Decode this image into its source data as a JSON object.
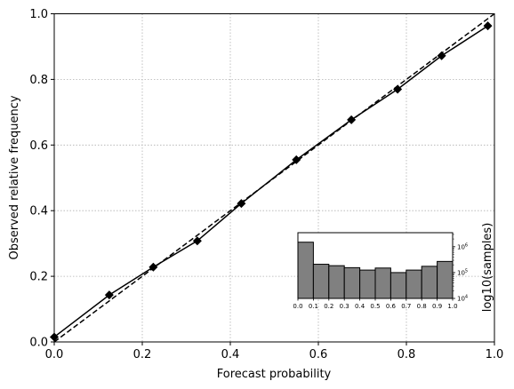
{
  "chart_data": [
    {
      "type": "line",
      "xlabel": "Forecast probability",
      "ylabel": "Observed relative frequency",
      "xlim": [
        0,
        1
      ],
      "ylim": [
        0,
        1
      ],
      "grid": true,
      "x_ticks": [
        "0.0",
        "0.2",
        "0.4",
        "0.6",
        "0.8",
        "1.0"
      ],
      "y_ticks": [
        "0.0",
        "0.2",
        "0.4",
        "0.6",
        "0.8",
        "1.0"
      ],
      "series": [
        {
          "x": [
            0.0,
            0.125,
            0.225,
            0.325,
            0.425,
            0.55,
            0.675,
            0.78,
            0.88,
            0.985
          ],
          "y": [
            0.015,
            0.143,
            0.228,
            0.308,
            0.422,
            0.555,
            0.677,
            0.77,
            0.872,
            0.963
          ],
          "marker": "diamond",
          "style": "solid",
          "color": "#000000"
        },
        {
          "x": [
            0,
            1
          ],
          "y": [
            0,
            1
          ],
          "style": "dashed",
          "color": "#000000"
        }
      ]
    },
    {
      "type": "bar",
      "inset": true,
      "ylabel": "log10(samples)",
      "y_scale": "log",
      "x_ticks": [
        "0.0",
        "0.1",
        "0.2",
        "0.3",
        "0.4",
        "0.5",
        "0.6",
        "0.7",
        "0.8",
        "0.9",
        "1.0"
      ],
      "y_ticks": [
        {
          "value": 10000,
          "base": "10",
          "exp": "4"
        },
        {
          "value": 100000,
          "base": "10",
          "exp": "5"
        },
        {
          "value": 1000000,
          "base": "10",
          "exp": "6"
        }
      ],
      "bin_edges": [
        0.0,
        0.1,
        0.2,
        0.3,
        0.4,
        0.5,
        0.6,
        0.7,
        0.8,
        0.9,
        1.0
      ],
      "values": [
        1500000,
        210000,
        185000,
        155000,
        125000,
        150000,
        100000,
        125000,
        175000,
        270000
      ],
      "ylim": [
        10000,
        3500000
      ],
      "bar_color": "#808080"
    }
  ]
}
